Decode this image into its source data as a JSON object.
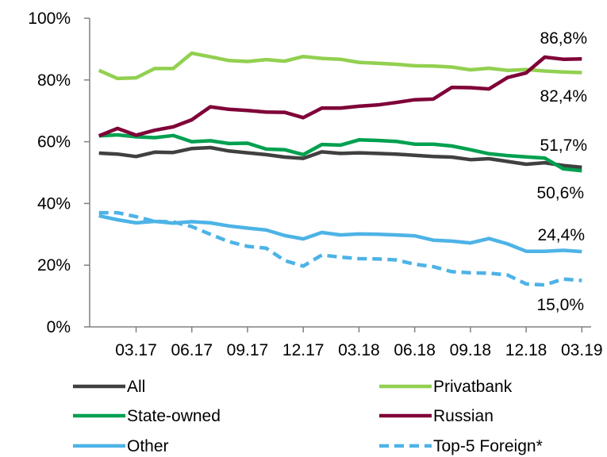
{
  "chart_data": {
    "type": "line",
    "title": "",
    "xlabel": "",
    "ylabel": "",
    "ylim": [
      0,
      100
    ],
    "yticks": [
      "0%",
      "20%",
      "40%",
      "60%",
      "80%",
      "100%"
    ],
    "ytick_values": [
      0,
      20,
      40,
      60,
      80,
      100
    ],
    "x_tick_labels": [
      "03.17",
      "06.17",
      "09.17",
      "12.17",
      "03.18",
      "06.18",
      "09.18",
      "12.18",
      "03.19"
    ],
    "x_tick_indices": [
      2,
      5,
      8,
      11,
      14,
      17,
      20,
      23,
      26
    ],
    "n_points": 27,
    "legend_position": "bottom",
    "grid": false,
    "series": [
      {
        "name": "All",
        "color": "#404040",
        "dash": "solid",
        "values": [
          56.3,
          56.0,
          55.2,
          56.6,
          56.5,
          57.8,
          58.1,
          57.0,
          56.4,
          55.8,
          55.0,
          54.6,
          56.7,
          56.2,
          56.4,
          56.2,
          56.0,
          55.6,
          55.2,
          55.0,
          54.2,
          54.5,
          53.6,
          52.7,
          53.2,
          52.3,
          51.7
        ],
        "end_label": "51,7%"
      },
      {
        "name": "Privatbank",
        "color": "#92D050",
        "dash": "solid",
        "values": [
          83.1,
          80.5,
          80.7,
          83.7,
          83.7,
          88.7,
          87.5,
          86.3,
          86.0,
          86.6,
          86.1,
          87.6,
          87.0,
          86.7,
          85.7,
          85.4,
          85.1,
          84.6,
          84.5,
          84.2,
          83.3,
          83.8,
          83.1,
          83.4,
          82.9,
          82.6,
          82.4
        ],
        "end_label": "82,4%"
      },
      {
        "name": "State-owned",
        "color": "#00A050",
        "dash": "solid",
        "values": [
          61.9,
          62.2,
          61.6,
          61.3,
          62.0,
          60.0,
          60.3,
          59.4,
          59.5,
          57.6,
          57.4,
          55.8,
          59.1,
          58.9,
          60.6,
          60.4,
          60.1,
          59.2,
          59.2,
          58.6,
          57.4,
          56.1,
          55.5,
          55.1,
          54.7,
          51.2,
          50.6
        ],
        "end_label": "50,6%"
      },
      {
        "name": "Russian",
        "color": "#7F0038",
        "dash": "solid",
        "values": [
          61.9,
          64.3,
          62.1,
          63.7,
          64.8,
          67.1,
          71.3,
          70.5,
          70.1,
          69.6,
          69.5,
          67.8,
          70.9,
          70.9,
          71.5,
          71.9,
          72.7,
          73.6,
          73.8,
          77.6,
          77.5,
          77.1,
          80.8,
          82.3,
          87.4,
          86.7,
          86.8
        ],
        "end_label": "86,8%"
      },
      {
        "name": "Other",
        "color": "#4DB3E6",
        "dash": "solid",
        "values": [
          36.0,
          34.7,
          33.7,
          34.2,
          33.6,
          34.1,
          33.7,
          32.7,
          32.0,
          31.4,
          29.6,
          28.5,
          30.6,
          29.8,
          30.1,
          30.0,
          29.8,
          29.5,
          28.1,
          27.8,
          27.2,
          28.6,
          26.9,
          24.5,
          24.5,
          24.8,
          24.4
        ],
        "end_label": "24,4%"
      },
      {
        "name": "Top-5 Foreign*",
        "color": "#4DB3E6",
        "dash": "dashed",
        "values": [
          37.0,
          37.0,
          35.7,
          34.2,
          34.0,
          32.5,
          30.0,
          27.6,
          26.1,
          25.5,
          21.5,
          19.7,
          23.3,
          22.6,
          22.1,
          22.0,
          21.7,
          20.3,
          19.5,
          17.9,
          17.5,
          17.4,
          16.8,
          13.9,
          13.6,
          15.5,
          15.0
        ],
        "end_label": "15,0%"
      }
    ]
  }
}
